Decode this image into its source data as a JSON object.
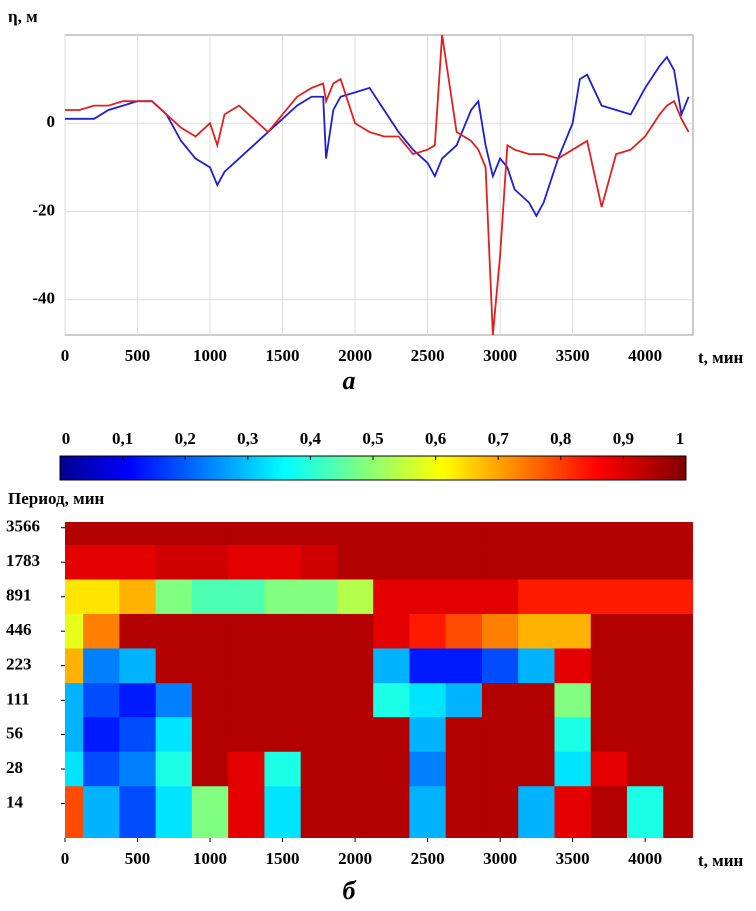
{
  "chart_data": [
    {
      "type": "line",
      "y_label": "η, м",
      "x_label": "t, мин",
      "panel_label": "а",
      "x": [
        0,
        100,
        200,
        300,
        400,
        500,
        600,
        700,
        800,
        900,
        1000,
        1050,
        1100,
        1200,
        1300,
        1400,
        1500,
        1600,
        1700,
        1780,
        1800,
        1850,
        1900,
        2000,
        2100,
        2200,
        2300,
        2400,
        2500,
        2550,
        2600,
        2700,
        2800,
        2850,
        2900,
        2950,
        3000,
        3050,
        3100,
        3200,
        3250,
        3300,
        3400,
        3500,
        3550,
        3600,
        3700,
        3800,
        3900,
        4000,
        4100,
        4150,
        4200,
        4250,
        4300
      ],
      "series": [
        {
          "name": "blue",
          "color": "#1f1fd0",
          "values": [
            1,
            1,
            1,
            3,
            4,
            5,
            5,
            2,
            -4,
            -8,
            -10,
            -14,
            -11,
            -8,
            -5,
            -2,
            1,
            4,
            6,
            6,
            -8,
            3,
            6,
            7,
            8,
            3,
            -2,
            -6,
            -9,
            -12,
            -8,
            -5,
            3,
            5,
            -5,
            -12,
            -8,
            -10,
            -15,
            -18,
            -21,
            -18,
            -8,
            0,
            10,
            11,
            4,
            3,
            2,
            8,
            13,
            15,
            12,
            2,
            6
          ]
        },
        {
          "name": "red",
          "color": "#e02020",
          "values": [
            3,
            3,
            4,
            4,
            5,
            5,
            5,
            2,
            -1,
            -3,
            0,
            -5,
            2,
            4,
            1,
            -2,
            2,
            6,
            8,
            9,
            5,
            9,
            10,
            0,
            -2,
            -3,
            -3,
            -7,
            -6,
            -5,
            20,
            -2,
            -4,
            -6,
            -10,
            -48,
            -30,
            -5,
            -6,
            -7,
            -7,
            -7,
            -8,
            -6,
            -5,
            -4,
            -19,
            -7,
            -6,
            -3,
            2,
            4,
            5,
            1,
            -2
          ]
        }
      ],
      "xlim": [
        0,
        4330
      ],
      "ylim": [
        -48,
        20
      ],
      "xticks": [
        0,
        500,
        1000,
        1500,
        2000,
        2500,
        3000,
        3500,
        4000
      ],
      "yticks": [
        -40,
        -20,
        0
      ],
      "grid": true
    },
    {
      "type": "heatmap",
      "y_label": "Период, мин",
      "x_label": "t, мин",
      "panel_label": "б",
      "colorscale": "jet",
      "log_y": true,
      "x": [
        0,
        250,
        500,
        750,
        1000,
        1250,
        1500,
        1750,
        2000,
        2250,
        2500,
        2750,
        3000,
        3250,
        3500,
        3750,
        4000,
        4250
      ],
      "y": [
        3566,
        1783,
        891,
        446,
        223,
        111,
        56,
        28,
        14
      ],
      "z": [
        [
          0.95,
          0.95,
          0.95,
          0.95,
          0.95,
          0.95,
          0.95,
          0.95,
          0.95,
          0.95,
          0.95,
          0.95,
          0.95,
          0.95,
          0.95,
          0.95,
          0.95,
          0.95
        ],
        [
          0.9,
          0.9,
          0.9,
          0.92,
          0.92,
          0.9,
          0.9,
          0.92,
          0.95,
          0.95,
          0.95,
          0.95,
          0.95,
          0.95,
          0.95,
          0.95,
          0.95,
          0.95
        ],
        [
          0.65,
          0.65,
          0.7,
          0.5,
          0.45,
          0.45,
          0.5,
          0.5,
          0.55,
          0.9,
          0.9,
          0.9,
          0.9,
          0.85,
          0.85,
          0.85,
          0.85,
          0.85
        ],
        [
          0.6,
          0.75,
          0.95,
          0.95,
          0.95,
          0.95,
          0.95,
          0.95,
          0.95,
          0.9,
          0.85,
          0.8,
          0.75,
          0.7,
          0.7,
          0.95,
          0.95,
          0.95
        ],
        [
          0.7,
          0.25,
          0.3,
          0.95,
          0.95,
          0.95,
          0.95,
          0.95,
          0.95,
          0.3,
          0.15,
          0.15,
          0.2,
          0.3,
          0.9,
          0.95,
          0.95,
          0.95
        ],
        [
          0.3,
          0.2,
          0.15,
          0.25,
          0.95,
          0.95,
          0.95,
          0.95,
          0.95,
          0.4,
          0.35,
          0.3,
          0.95,
          0.95,
          0.5,
          0.95,
          0.95,
          0.95
        ],
        [
          0.3,
          0.15,
          0.2,
          0.35,
          0.95,
          0.95,
          0.95,
          0.95,
          0.95,
          0.95,
          0.3,
          0.95,
          0.95,
          0.95,
          0.4,
          0.95,
          0.95,
          0.95
        ],
        [
          0.35,
          0.2,
          0.25,
          0.4,
          0.95,
          0.9,
          0.4,
          0.95,
          0.95,
          0.95,
          0.25,
          0.95,
          0.95,
          0.95,
          0.35,
          0.9,
          0.95,
          0.95
        ],
        [
          0.8,
          0.3,
          0.2,
          0.35,
          0.5,
          0.9,
          0.35,
          0.95,
          0.95,
          0.95,
          0.3,
          0.95,
          0.95,
          0.3,
          0.9,
          0.95,
          0.4,
          0.95
        ]
      ],
      "xlim": [
        0,
        4330
      ],
      "ylim": [
        7,
        4000
      ],
      "xticks": [
        0,
        500,
        1000,
        1500,
        2000,
        2500,
        3000,
        3500,
        4000
      ],
      "yticks": [
        14,
        28,
        56,
        111,
        223,
        446,
        891,
        1783,
        3566
      ],
      "colorbar": {
        "lim": [
          0,
          1
        ],
        "ticks": [
          0,
          {
            "value": 0.1,
            "label": "0,1"
          },
          {
            "value": 0.2,
            "label": "0,2"
          },
          {
            "value": 0.3,
            "label": "0,3"
          },
          {
            "value": 0.4,
            "label": "0,4"
          },
          {
            "value": 0.5,
            "label": "0,5"
          },
          {
            "value": 0.6,
            "label": "0,6"
          },
          {
            "value": 0.7,
            "label": "0,7"
          },
          {
            "value": 0.8,
            "label": "0,8"
          },
          {
            "value": 0.9,
            "label": "0,9"
          },
          1
        ]
      }
    }
  ]
}
